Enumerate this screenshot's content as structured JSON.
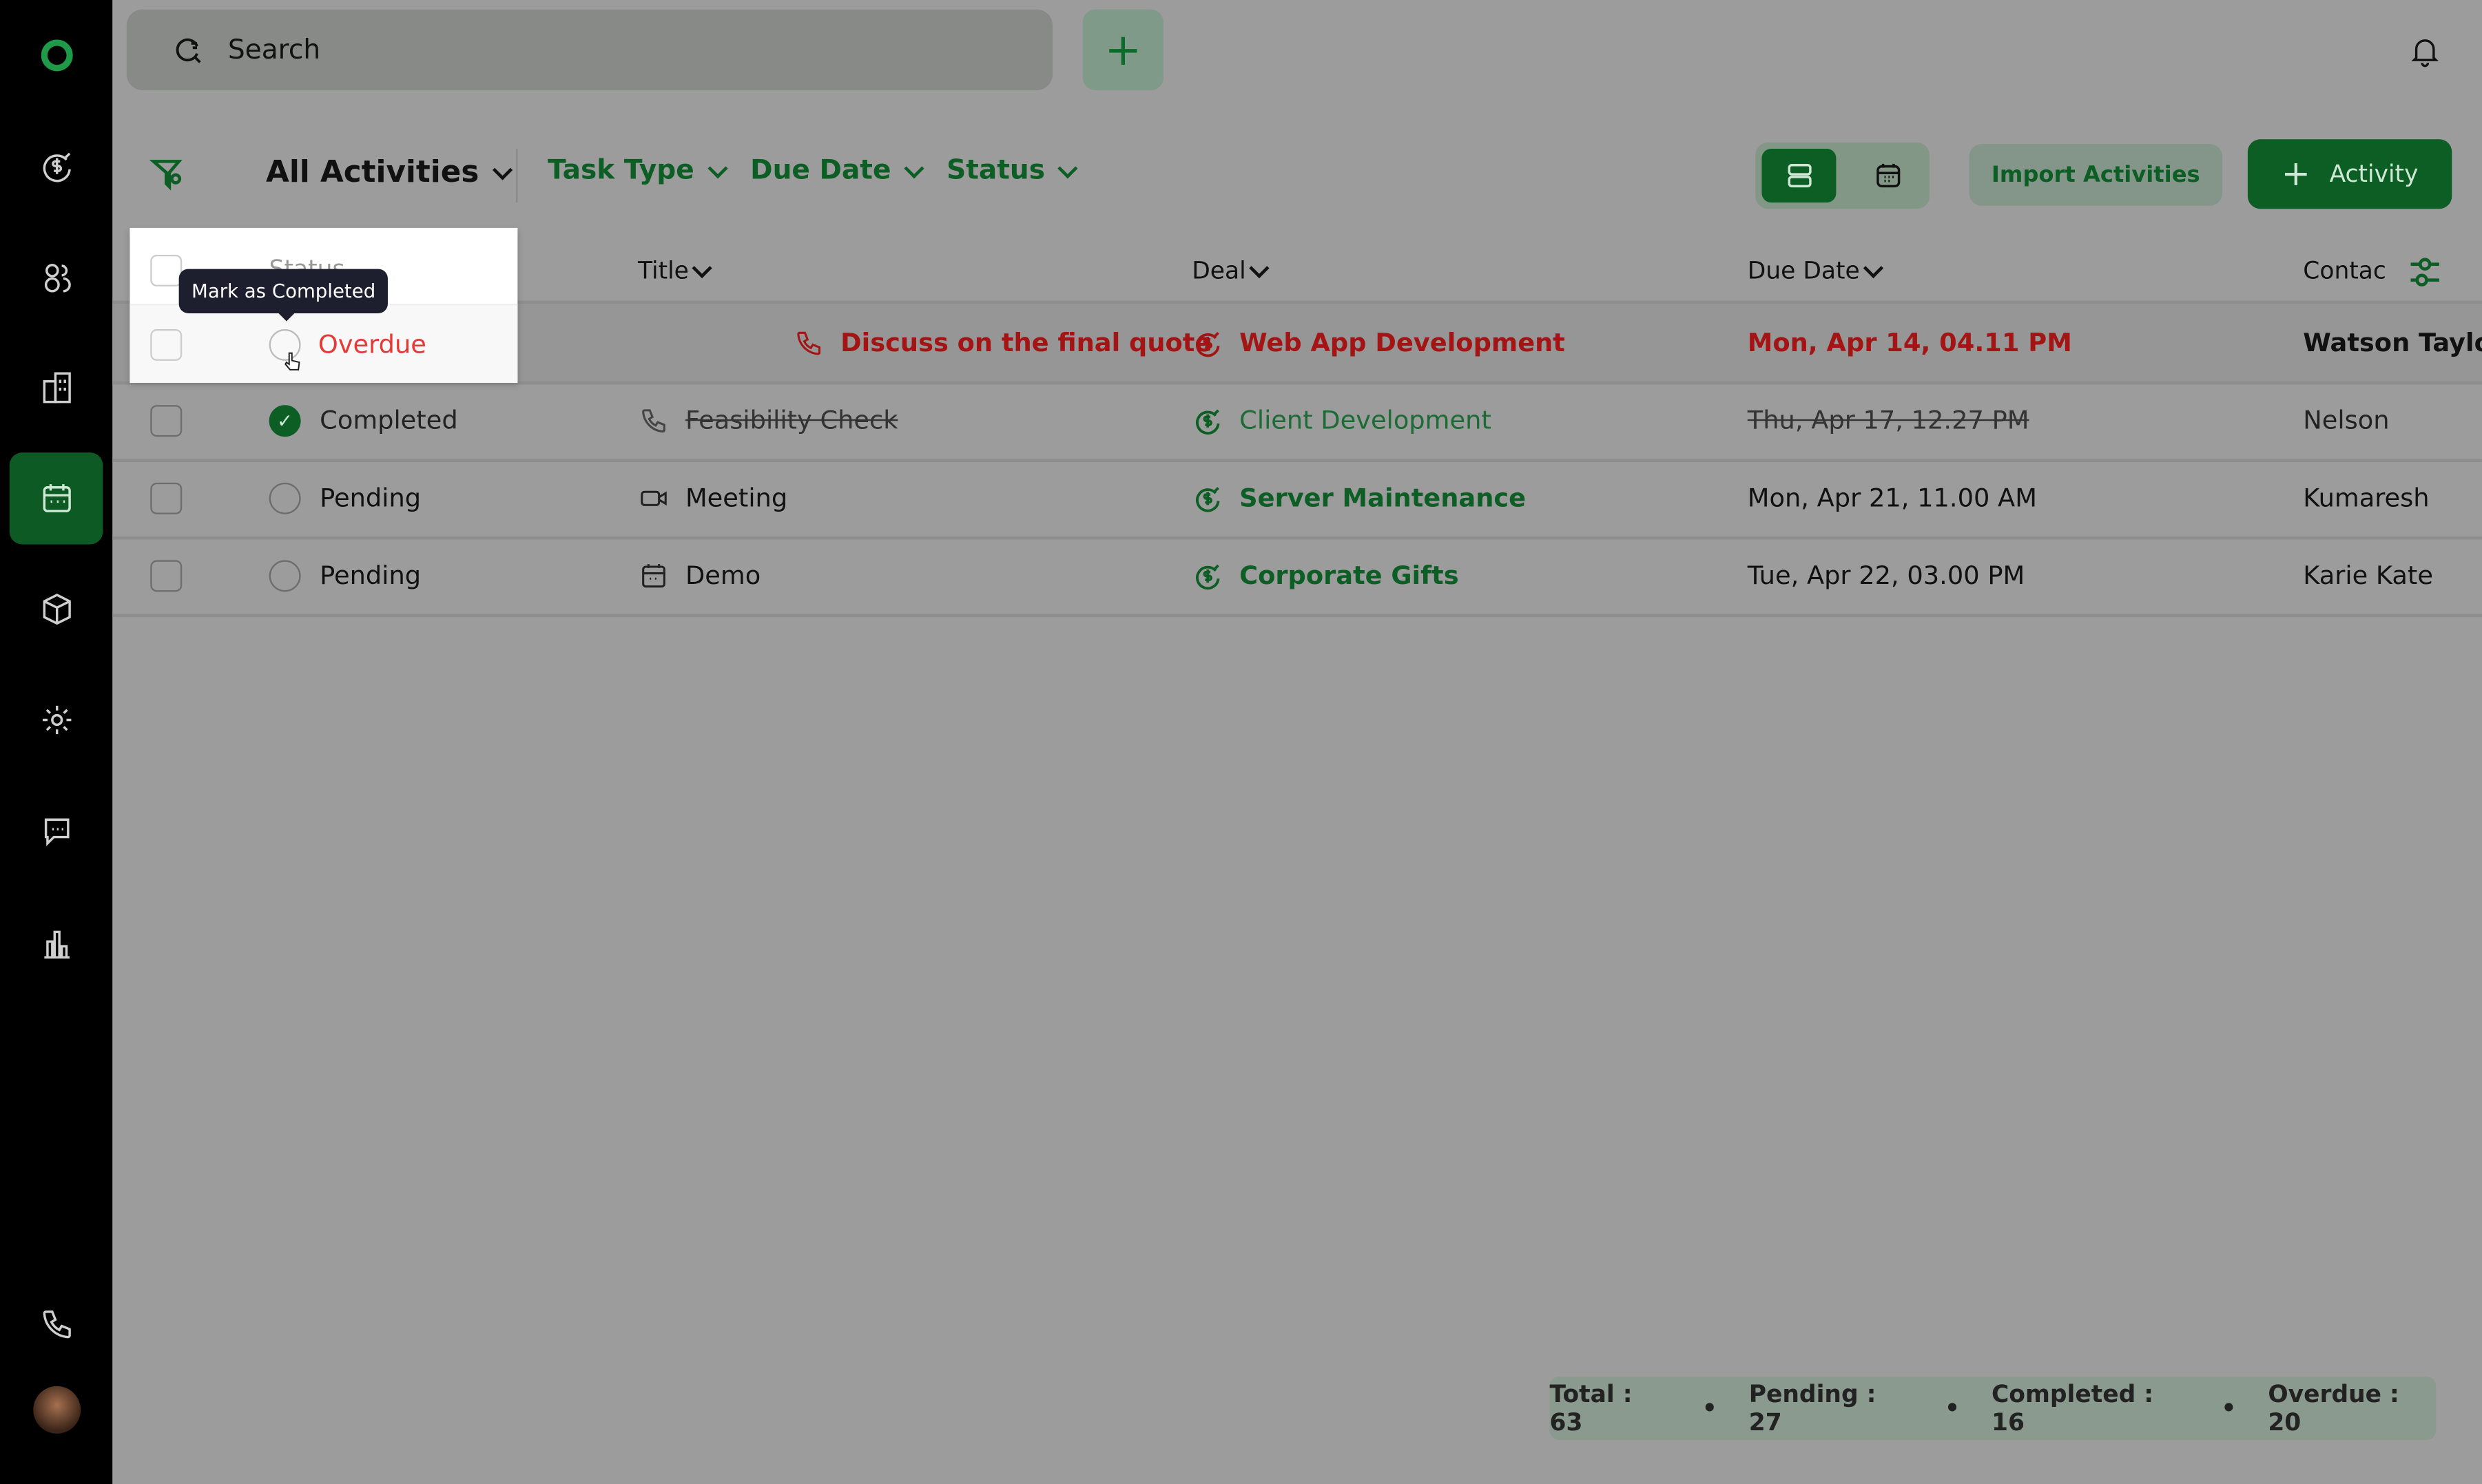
{
  "search": {
    "placeholder": "Search"
  },
  "toolbar": {
    "view": "All Activities",
    "filters": [
      "Task Type",
      "Due Date",
      "Status"
    ],
    "import_label": "Import Activities",
    "add_label": "Activity"
  },
  "table": {
    "columns": [
      "Status",
      "Title",
      "Deal",
      "Due Date",
      "Contac"
    ],
    "rows": [
      {
        "status": "Overdue",
        "title": "Discuss on the final quote",
        "type": "call",
        "deal": "Web App Development",
        "due": "Mon, Apr 14, 04.11 PM",
        "contact": "Watson Taylor"
      },
      {
        "status": "Completed",
        "title": "Feasibility Check",
        "type": "call",
        "deal": "Client Development",
        "due": "Thu, Apr 17, 12.27 PM",
        "contact": "Nelson"
      },
      {
        "status": "Pending",
        "title": "Meeting",
        "type": "meeting",
        "deal": "Server Maintenance",
        "due": "Mon, Apr 21, 11.00 AM",
        "contact": "Kumaresh"
      },
      {
        "status": "Pending",
        "title": "Demo",
        "type": "demo",
        "deal": "Corporate Gifts",
        "due": "Tue, Apr 22, 03.00 PM",
        "contact": "Karie Kate"
      }
    ]
  },
  "tooltip": "Mark as Completed",
  "summary": {
    "total": "Total : 63",
    "pending": "Pending : 27",
    "completed": "Completed : 16",
    "overdue": "Overdue : 20"
  },
  "colors": {
    "accent": "#0c5e24",
    "overdue": "#a31414",
    "sidebar": "#000000"
  }
}
